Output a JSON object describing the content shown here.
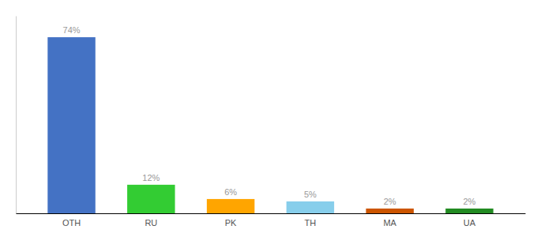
{
  "chart_data": {
    "type": "bar",
    "categories": [
      "OTH",
      "RU",
      "PK",
      "TH",
      "MA",
      "UA"
    ],
    "values": [
      74,
      12,
      6,
      5,
      2,
      2
    ],
    "value_labels": [
      "74%",
      "12%",
      "6%",
      "5%",
      "2%",
      "2%"
    ],
    "colors": [
      "#4472C4",
      "#33CC33",
      "#FFA500",
      "#87CEEB",
      "#CC5500",
      "#228B22"
    ],
    "ylim": [
      0,
      83
    ],
    "data_labels": true,
    "tick_labels": "x"
  }
}
